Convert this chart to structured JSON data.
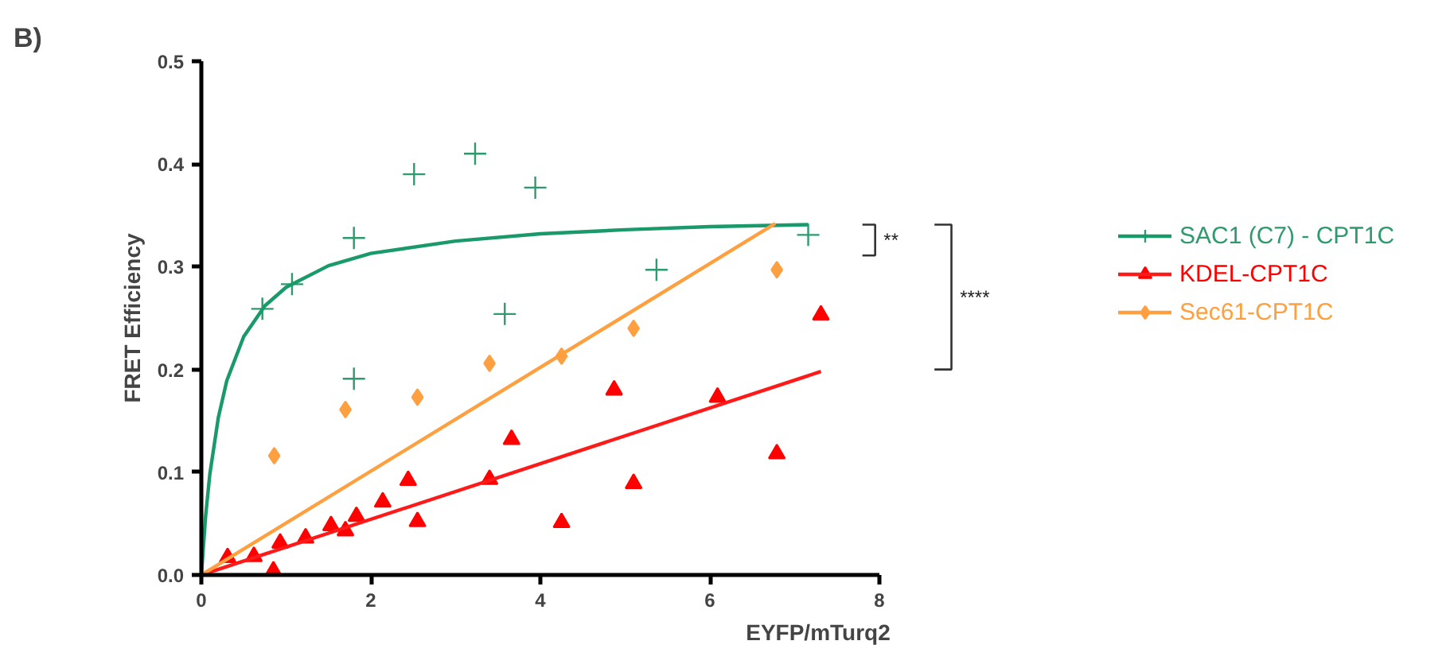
{
  "chart_data": {
    "type": "scatter",
    "xlabel": "EYFP/mTurq2",
    "ylabel": "FRET Efficiency",
    "xlim": [
      0,
      8
    ],
    "ylim": [
      0,
      0.5
    ],
    "xticks": [
      0,
      2,
      4,
      6,
      8
    ],
    "yticks": [
      {
        "value": 0,
        "label": "0.0"
      },
      0.1,
      0.2,
      0.3,
      0.4,
      0.5
    ],
    "grid": false,
    "legend": "right",
    "annotations": [
      "B)",
      "**",
      "****"
    ],
    "series": [
      {
        "name": "SAC1 (C7) - CPT1C",
        "marker": "cross",
        "color": "#2e9a6e",
        "x": [
          0.72,
          1.07,
          1.8,
          1.8,
          2.51,
          3.23,
          3.58,
          3.94,
          5.37,
          7.16
        ],
        "values": [
          0.259,
          0.283,
          0.328,
          0.191,
          0.39,
          0.41,
          0.254,
          0.377,
          0.297,
          0.331
        ]
      },
      {
        "type": "line",
        "color": "#1a9a6a",
        "x": [
          0,
          0.05,
          0.1,
          0.2,
          0.3,
          0.5,
          0.75,
          1,
          1.5,
          2,
          3,
          4,
          5,
          6,
          7.16
        ],
        "values": [
          0,
          0.057,
          0.098,
          0.153,
          0.189,
          0.232,
          0.262,
          0.28,
          0.301,
          0.313,
          0.325,
          0.332,
          0.336,
          0.339,
          0.341
        ]
      },
      {
        "name": "KDEL-CPT1C",
        "marker": "triangle",
        "color": "#ff0000",
        "x": [
          0.31,
          0.62,
          0.85,
          0.93,
          1.23,
          1.53,
          1.7,
          1.83,
          2.14,
          2.44,
          2.55,
          3.4,
          3.66,
          4.25,
          4.87,
          5.1,
          6.09,
          6.79,
          7.31
        ],
        "values": [
          0.017,
          0.018,
          0.004,
          0.031,
          0.036,
          0.048,
          0.043,
          0.057,
          0.071,
          0.092,
          0.052,
          0.093,
          0.132,
          0.051,
          0.18,
          0.089,
          0.173,
          0.118,
          0.253
        ]
      },
      {
        "type": "line",
        "color": "#ff1a1a",
        "x": [
          0,
          7.31
        ],
        "values": [
          0,
          0.198
        ]
      },
      {
        "name": "Sec61-CPT1C",
        "marker": "diamond",
        "color": "#ffa040",
        "x": [
          0.86,
          1.7,
          2.55,
          3.4,
          4.25,
          5.1,
          6.79
        ],
        "values": [
          0.116,
          0.161,
          0.173,
          0.206,
          0.213,
          0.24,
          0.297
        ]
      },
      {
        "type": "line",
        "color": "#ffa040",
        "x": [
          0,
          6.77
        ],
        "values": [
          0,
          0.342
        ]
      }
    ]
  }
}
